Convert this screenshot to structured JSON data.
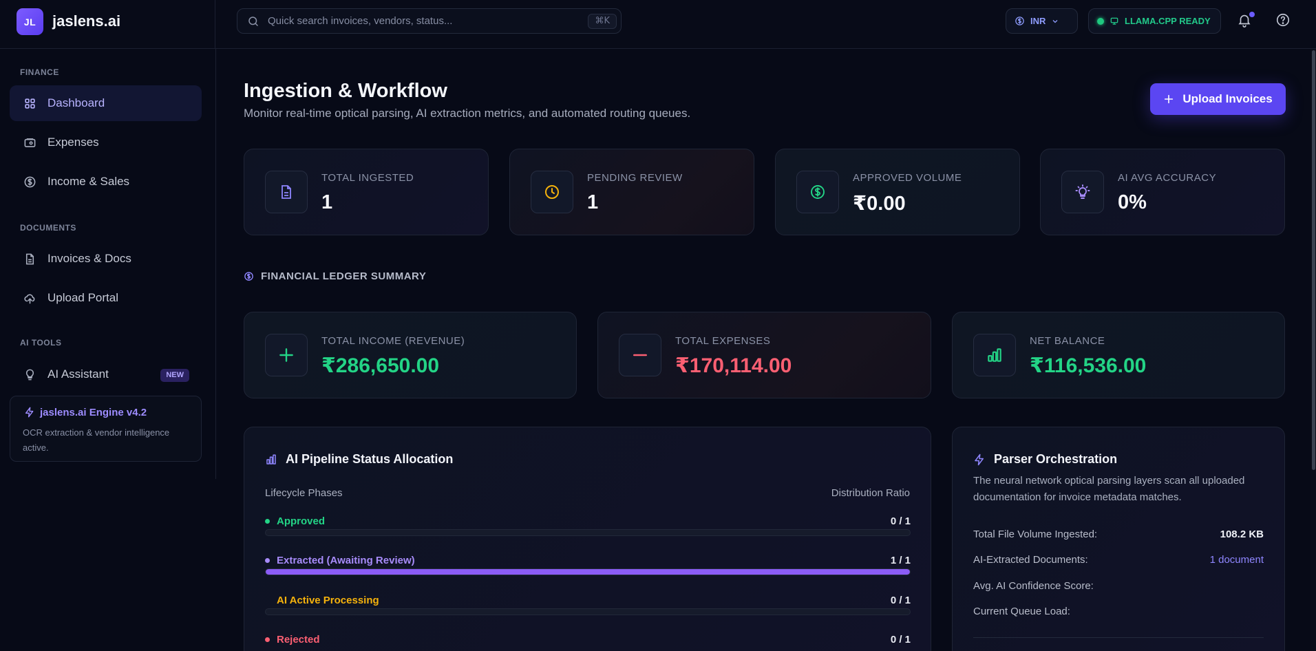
{
  "brand": {
    "logo_text": "JL",
    "name": "jaslens.ai"
  },
  "search": {
    "placeholder": "Quick search invoices, vendors, status...",
    "shortcut": "⌘K"
  },
  "topbar": {
    "currency": "INR",
    "llm_status": "LLAMA.CPP READY",
    "llm_status_color": "#1fc77f"
  },
  "sidebar": {
    "sections": [
      {
        "label": "FINANCE"
      },
      {
        "label": "DOCUMENTS"
      },
      {
        "label": "AI TOOLS"
      }
    ],
    "items": [
      {
        "label": "Dashboard",
        "icon": "grid-icon",
        "active": true
      },
      {
        "label": "Expenses",
        "icon": "wallet-icon"
      },
      {
        "label": "Income & Sales",
        "icon": "dollar-circle-icon"
      },
      {
        "label": "Invoices & Docs",
        "icon": "document-icon"
      },
      {
        "label": "Upload Portal",
        "icon": "cloud-upload-icon"
      },
      {
        "label": "AI Assistant",
        "icon": "lightbulb-icon",
        "badge": "NEW"
      }
    ],
    "engine": {
      "title": "jaslens.ai Engine v4.2",
      "description": "OCR extraction & vendor intelligence active."
    }
  },
  "main": {
    "title": "Ingestion & Workflow",
    "subtitle": "Monitor real-time optical parsing, AI extraction metrics, and automated routing queues.",
    "upload_label": "Upload Invoices",
    "accent": "#5b46f2",
    "stats": [
      {
        "label": "TOTAL INGESTED",
        "value": "1",
        "icon": "document-icon"
      },
      {
        "label": "PENDING REVIEW",
        "value": "1",
        "icon": "clock-icon"
      },
      {
        "label": "APPROVED VOLUME",
        "value": "₹0.00",
        "icon": "dollar-circle-icon"
      },
      {
        "label": "AI AVG ACCURACY",
        "value": "0%",
        "icon": "lightbulb-icon"
      }
    ],
    "ledger": {
      "heading": "FINANCIAL LEDGER SUMMARY",
      "cards": [
        {
          "label": "TOTAL INCOME (REVENUE)",
          "value": "₹286,650.00",
          "color": "#23d486",
          "icon": "plus-icon"
        },
        {
          "label": "TOTAL EXPENSES",
          "value": "₹170,114.00",
          "color": "#fb5f72",
          "icon": "minus-icon"
        },
        {
          "label": "NET BALANCE",
          "value": "₹116,536.00",
          "color": "#23d486",
          "icon": "bar-chart-icon"
        }
      ]
    },
    "pipeline": {
      "title": "AI Pipeline Status Allocation",
      "col_left": "Lifecycle Phases",
      "col_right": "Distribution Ratio",
      "phases": [
        {
          "label": "Approved",
          "count": "0 / 1",
          "ratio": 0,
          "color": "#23d486"
        },
        {
          "label": "Extracted (Awaiting Review)",
          "count": "1 / 1",
          "ratio": 1,
          "color": "#a78bfa"
        },
        {
          "label": "AI Active Processing",
          "count": "0 / 1",
          "ratio": 0,
          "color": "#f5b20c"
        },
        {
          "label": "Rejected",
          "count": "0 / 1",
          "ratio": 0,
          "color": "#fb5f72"
        }
      ]
    },
    "parser": {
      "title": "Parser Orchestration",
      "description": "The neural network optical parsing layers scan all uploaded documentation for invoice metadata matches.",
      "rows": [
        {
          "label": "Total File Volume Ingested:",
          "value": "108.2 KB"
        },
        {
          "label": "AI-Extracted Documents:",
          "value": "1 document"
        },
        {
          "label": "Avg. AI Confidence Score:",
          "value": ""
        },
        {
          "label": "Current Queue Load:",
          "value": ""
        }
      ]
    }
  }
}
